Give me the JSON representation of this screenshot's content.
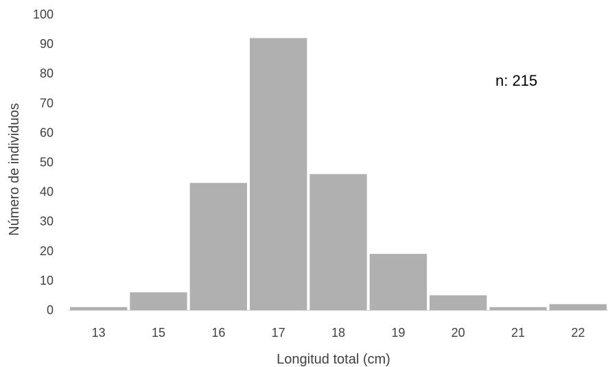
{
  "chart_data": {
    "type": "bar",
    "title": "",
    "xlabel": "Longitud total (cm)",
    "ylabel": "Número de individuos",
    "categories": [
      "13",
      "15",
      "16",
      "17",
      "18",
      "19",
      "20",
      "21",
      "22"
    ],
    "values": [
      1,
      6,
      43,
      92,
      46,
      19,
      5,
      1,
      2
    ],
    "ylim": [
      0,
      100
    ],
    "yticks": [
      "0",
      "10",
      "20",
      "30",
      "40",
      "50",
      "60",
      "70",
      "80",
      "90",
      "100"
    ],
    "grid": false,
    "legend": "none",
    "annotation": "n: 215",
    "bar_color": "#b0b0b0",
    "axis_color": "#d0d0d0"
  }
}
